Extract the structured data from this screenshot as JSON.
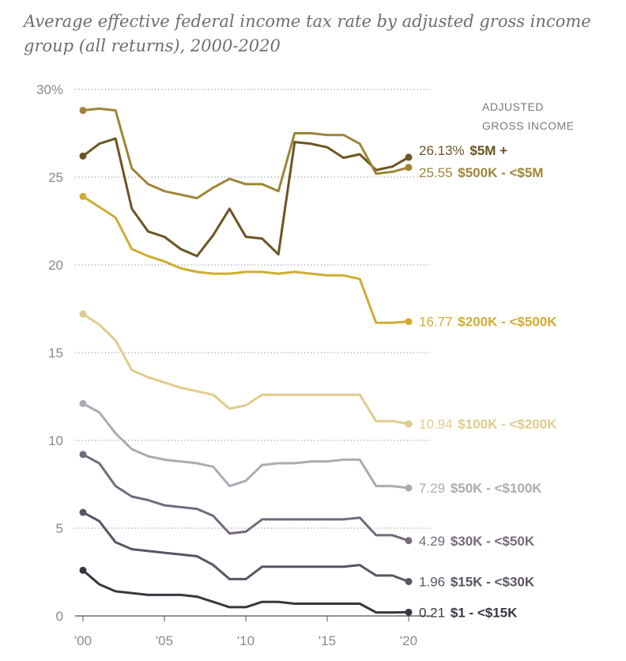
{
  "chart_data": {
    "type": "line",
    "title": "Average effective federal income tax rate by adjusted gross income group (all returns), 2000-2020",
    "legend_title_line1": "ADJUSTED",
    "legend_title_line2": "GROSS INCOME",
    "x": [
      2000,
      2001,
      2002,
      2003,
      2004,
      2005,
      2006,
      2007,
      2008,
      2009,
      2010,
      2011,
      2012,
      2013,
      2014,
      2015,
      2016,
      2017,
      2018,
      2019,
      2020
    ],
    "xlim": [
      2000,
      2020
    ],
    "ylim": [
      0,
      30
    ],
    "y_ticks": [
      0,
      5,
      10,
      15,
      20,
      25,
      30
    ],
    "y_tick_labels": [
      "0",
      "5",
      "10",
      "15",
      "20",
      "25",
      "30%"
    ],
    "x_ticks": [
      2000,
      2005,
      2010,
      2015,
      2020
    ],
    "x_tick_labels": [
      "'00",
      "'05",
      "'10",
      "'15",
      "'20"
    ],
    "grid": "horizontal dotted",
    "legend": "direct labels at line ends (right)",
    "series": [
      {
        "name": "$5M +",
        "end_label": "26.13%",
        "color": "#6b5523",
        "values": [
          26.2,
          26.9,
          27.2,
          23.2,
          21.9,
          21.6,
          20.9,
          20.5,
          21.7,
          23.2,
          21.6,
          21.5,
          20.6,
          27.0,
          26.9,
          26.7,
          26.1,
          26.3,
          25.4,
          25.6,
          26.13
        ]
      },
      {
        "name": "$500K - <$5M",
        "end_label": "25.55",
        "color": "#9e8537",
        "values": [
          28.8,
          28.9,
          28.8,
          25.5,
          24.6,
          24.2,
          24.0,
          23.8,
          24.4,
          24.9,
          24.6,
          24.6,
          24.2,
          27.5,
          27.5,
          27.4,
          27.4,
          26.9,
          25.2,
          25.3,
          25.55
        ]
      },
      {
        "name": "$200K - <$500K",
        "end_label": "16.77",
        "color": "#d1ac33",
        "values": [
          23.9,
          23.3,
          22.7,
          20.9,
          20.5,
          20.2,
          19.8,
          19.6,
          19.5,
          19.5,
          19.6,
          19.6,
          19.5,
          19.6,
          19.5,
          19.4,
          19.4,
          19.2,
          16.7,
          16.7,
          16.77
        ]
      },
      {
        "name": "$100K - <$200K",
        "end_label": "10.94",
        "color": "#e0cc8c",
        "values": [
          17.2,
          16.6,
          15.7,
          14.0,
          13.6,
          13.3,
          13.0,
          12.8,
          12.6,
          11.8,
          12.0,
          12.6,
          12.6,
          12.6,
          12.6,
          12.6,
          12.6,
          12.6,
          11.1,
          11.1,
          10.94
        ]
      },
      {
        "name": "$50K - <$100K",
        "end_label": "7.29",
        "color": "#b0a9b3",
        "values": [
          12.1,
          11.6,
          10.4,
          9.5,
          9.1,
          8.9,
          8.8,
          8.7,
          8.5,
          7.4,
          7.7,
          8.6,
          8.7,
          8.7,
          8.8,
          8.8,
          8.9,
          8.9,
          7.4,
          7.4,
          7.29
        ]
      },
      {
        "name": "$30K - <$50K",
        "end_label": "4.29",
        "color": "#756a7c",
        "values": [
          9.2,
          8.7,
          7.4,
          6.8,
          6.6,
          6.3,
          6.2,
          6.1,
          5.7,
          4.7,
          4.8,
          5.5,
          5.5,
          5.5,
          5.5,
          5.5,
          5.5,
          5.6,
          4.6,
          4.6,
          4.29
        ]
      },
      {
        "name": "$15K - <$30K",
        "end_label": "1.96",
        "color": "#5c5364",
        "values": [
          5.9,
          5.4,
          4.2,
          3.8,
          3.7,
          3.6,
          3.5,
          3.4,
          2.9,
          2.1,
          2.1,
          2.8,
          2.8,
          2.8,
          2.8,
          2.8,
          2.8,
          2.9,
          2.3,
          2.3,
          1.96
        ]
      },
      {
        "name": "$1 - <$15K",
        "end_label": "0.21",
        "color": "#3b3640",
        "values": [
          2.6,
          1.8,
          1.4,
          1.3,
          1.2,
          1.2,
          1.2,
          1.1,
          0.8,
          0.5,
          0.5,
          0.8,
          0.8,
          0.7,
          0.7,
          0.7,
          0.7,
          0.7,
          0.2,
          0.2,
          0.21
        ]
      }
    ]
  }
}
